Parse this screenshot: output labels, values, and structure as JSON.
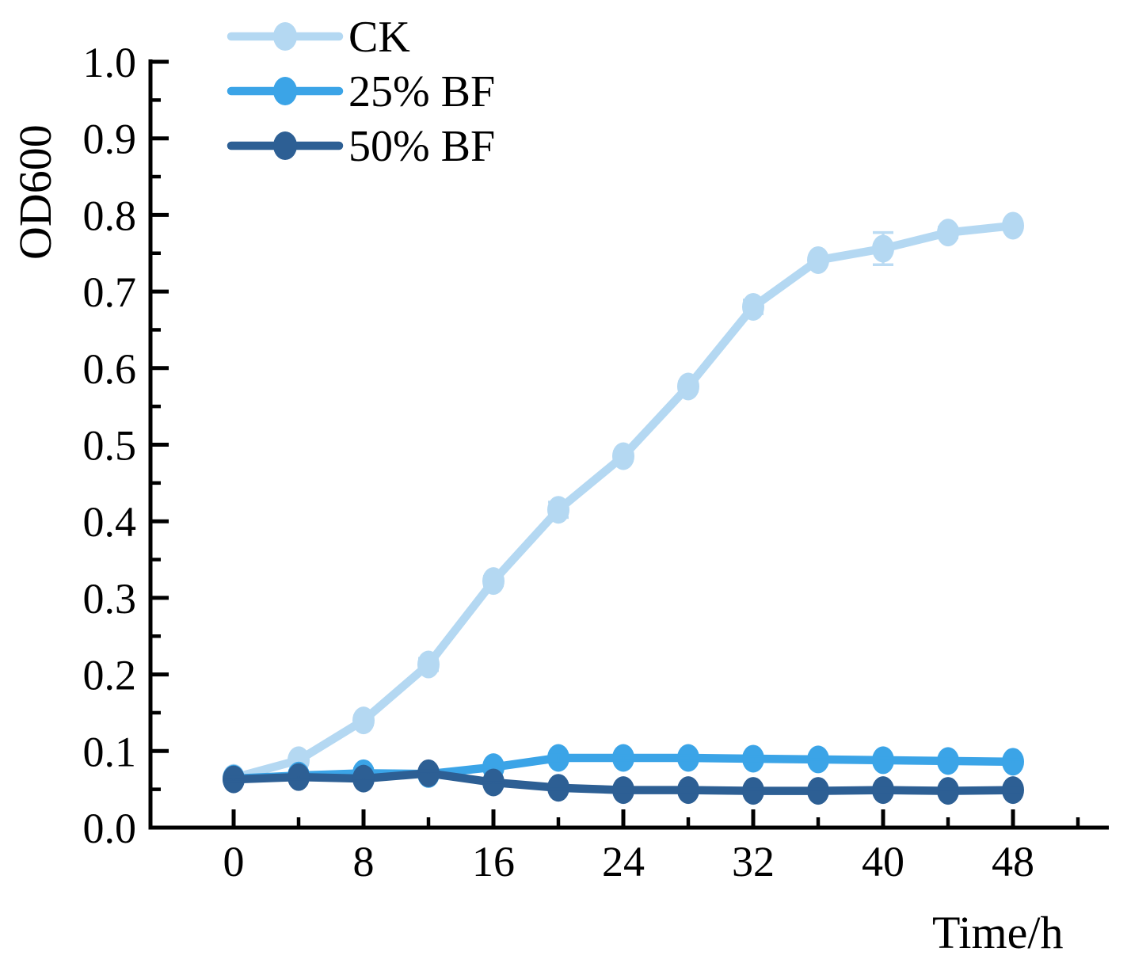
{
  "chart_data": {
    "type": "line",
    "title": "",
    "xlabel": "Time/h",
    "ylabel": "OD600",
    "x": [
      0,
      4,
      8,
      12,
      16,
      20,
      24,
      28,
      32,
      36,
      40,
      44,
      48
    ],
    "series": [
      {
        "name": "CK",
        "color": "#b4d8f2",
        "values": [
          0.065,
          0.088,
          0.14,
          0.213,
          0.322,
          0.415,
          0.485,
          0.576,
          0.68,
          0.741,
          0.756,
          0.777,
          0.786
        ],
        "errors": [
          0.003,
          0.004,
          0.006,
          0.008,
          0.006,
          0.01,
          0.006,
          0.006,
          0.009,
          0.005,
          0.021,
          0.007,
          0.004
        ]
      },
      {
        "name": "25% BF",
        "color": "#3ba4e7",
        "values": [
          0.064,
          0.068,
          0.071,
          0.07,
          0.079,
          0.091,
          0.091,
          0.091,
          0.09,
          0.089,
          0.088,
          0.087,
          0.086
        ],
        "errors": [
          0.004,
          0.006,
          0.006,
          0.005,
          0.004,
          0.004,
          0.003,
          0.003,
          0.003,
          0.003,
          0.003,
          0.003,
          0.003
        ]
      },
      {
        "name": "50% BF",
        "color": "#2d5f94",
        "values": [
          0.063,
          0.066,
          0.064,
          0.071,
          0.059,
          0.052,
          0.049,
          0.049,
          0.048,
          0.048,
          0.049,
          0.048,
          0.049
        ],
        "errors": [
          0.003,
          0.003,
          0.003,
          0.003,
          0.003,
          0.002,
          0.002,
          0.002,
          0.002,
          0.002,
          0.002,
          0.002,
          0.002
        ]
      }
    ],
    "x_ticks_major": {
      "values": [
        0,
        8,
        16,
        24,
        32,
        40,
        48
      ],
      "labels": [
        "0",
        "8",
        "16",
        "24",
        "32",
        "40",
        "48"
      ]
    },
    "x_ticks_minor": [
      4,
      12,
      20,
      28,
      36,
      44,
      52
    ],
    "y_ticks_major": {
      "values": [
        0,
        0.1,
        0.2,
        0.3,
        0.4,
        0.5,
        0.6,
        0.7,
        0.8,
        0.9,
        1.0
      ],
      "labels": [
        "0.0",
        "0.1",
        "0.2",
        "0.3",
        "0.4",
        "0.5",
        "0.6",
        "0.7",
        "0.8",
        "0.9",
        "1.0"
      ]
    },
    "y_ticks_minor": [
      0.05,
      0.15,
      0.25,
      0.35,
      0.45,
      0.55,
      0.65,
      0.75,
      0.85,
      0.95
    ],
    "xlim": [
      0,
      48
    ],
    "ylim": [
      0,
      1.0
    ],
    "grid": false,
    "legend_position": "top-left-inside",
    "axis_color": "#000000",
    "background_color": "#ffffff"
  }
}
